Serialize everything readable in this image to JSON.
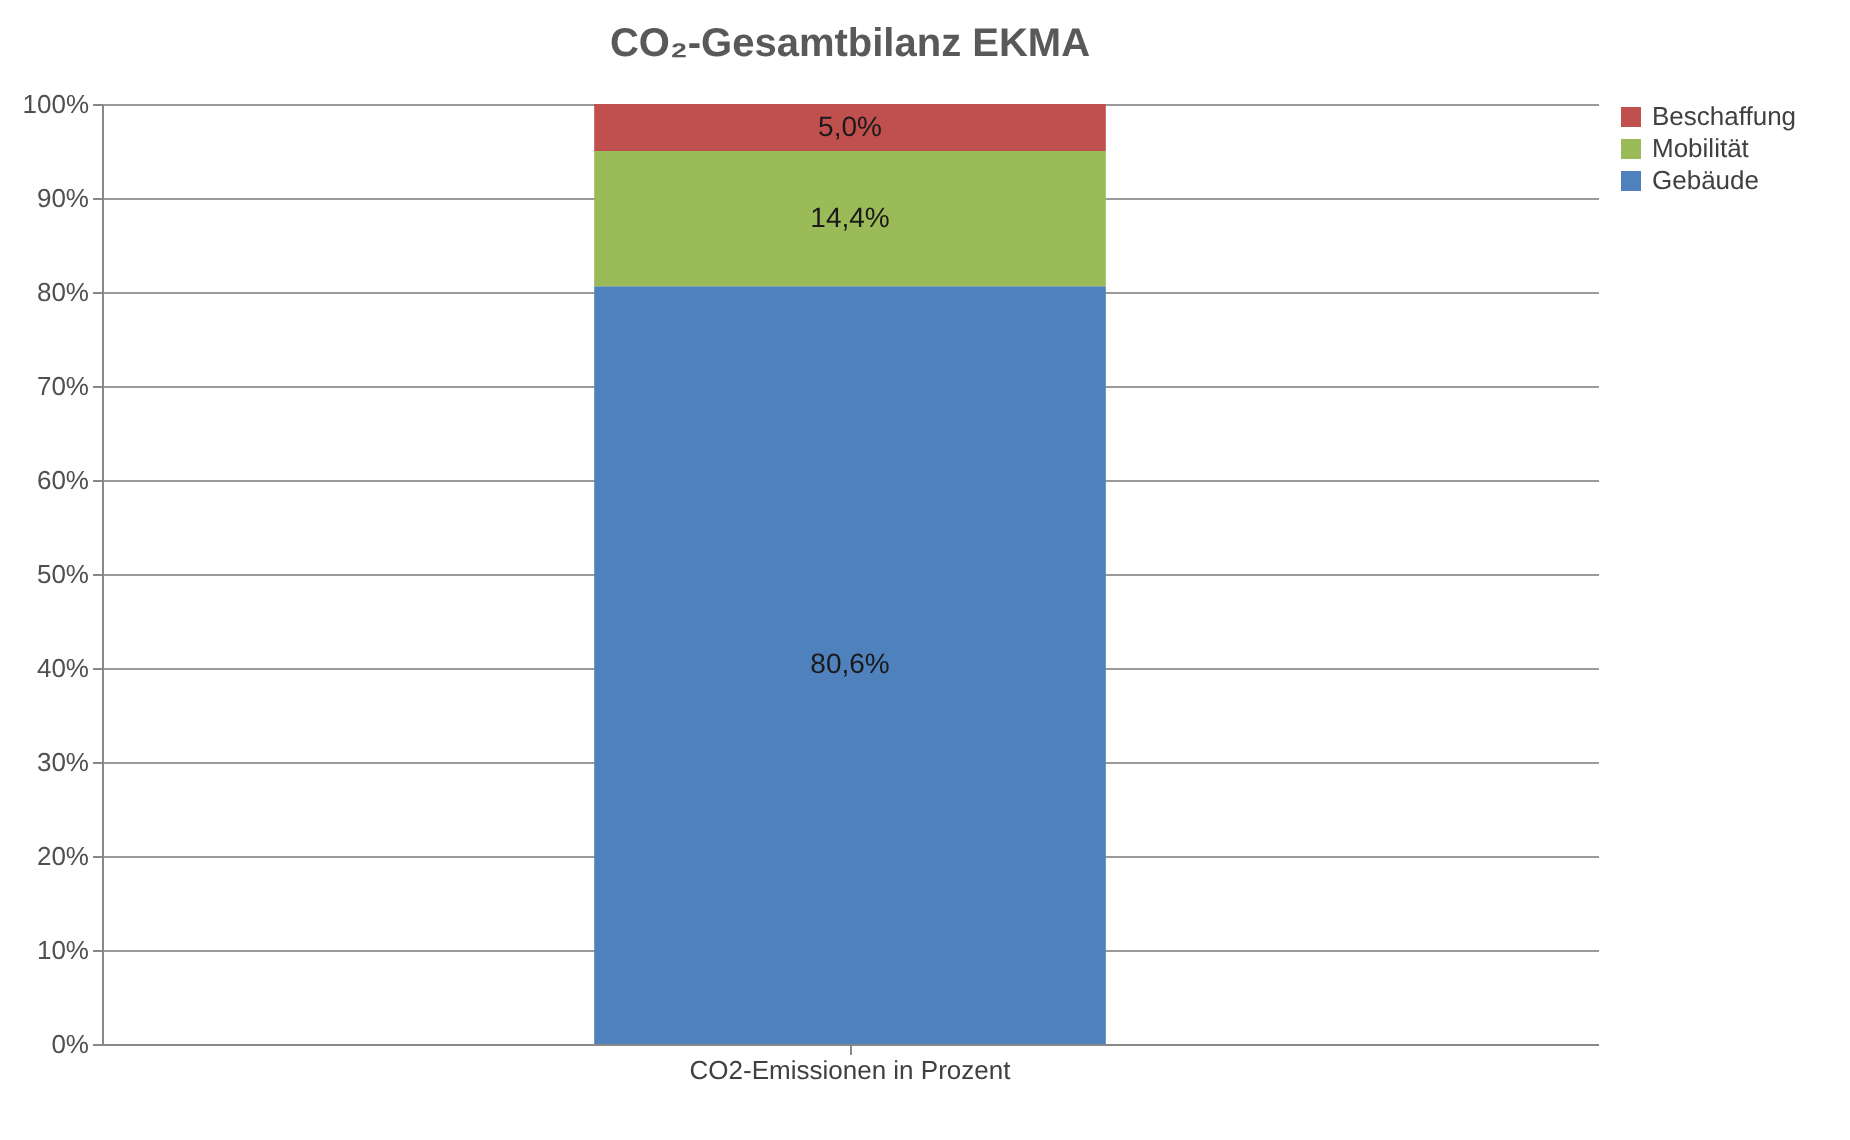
{
  "chart_data": {
    "type": "bar",
    "title": "CO₂-Gesamtbilanz EKMA",
    "categories": [
      "CO2-Emissionen in Prozent"
    ],
    "stacked": true,
    "series": [
      {
        "name": "Gebäude",
        "color": "#4f81bd",
        "values": [
          80.6
        ],
        "value_labels": [
          "80,6%"
        ]
      },
      {
        "name": "Mobilität",
        "color": "#9bbb59",
        "values": [
          14.4
        ],
        "value_labels": [
          "14,4%"
        ]
      },
      {
        "name": "Beschaffung",
        "color": "#c0504d",
        "values": [
          5.0
        ],
        "value_labels": [
          "5,0%"
        ]
      }
    ],
    "ylim": [
      0,
      100
    ],
    "yticks": [
      {
        "value": 0,
        "label": "0%"
      },
      {
        "value": 10,
        "label": "10%"
      },
      {
        "value": 20,
        "label": "20%"
      },
      {
        "value": 30,
        "label": "30%"
      },
      {
        "value": 40,
        "label": "40%"
      },
      {
        "value": 50,
        "label": "50%"
      },
      {
        "value": 60,
        "label": "60%"
      },
      {
        "value": 70,
        "label": "70%"
      },
      {
        "value": 80,
        "label": "80%"
      },
      {
        "value": 90,
        "label": "90%"
      },
      {
        "value": 100,
        "label": "100%"
      }
    ],
    "grid": "y",
    "legend": "right"
  }
}
